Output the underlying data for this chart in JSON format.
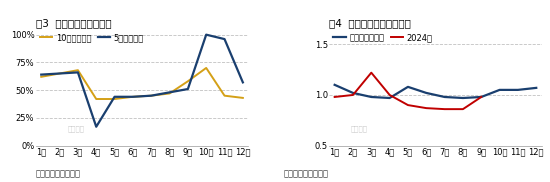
{
  "fig3_title": "图3  碳酸锂价格上涨概率",
  "fig4_title": "图4  碳酸锂价格季节性指数",
  "months": [
    "1月",
    "2月",
    "3月",
    "4月",
    "5月",
    "6月",
    "7月",
    "8月",
    "9月",
    "10月",
    "11月",
    "12月"
  ],
  "fig3_10yr": [
    0.62,
    0.65,
    0.68,
    0.42,
    0.42,
    0.44,
    0.45,
    0.47,
    0.58,
    0.7,
    0.45,
    0.43
  ],
  "fig3_5yr": [
    0.64,
    0.65,
    0.66,
    0.17,
    0.44,
    0.44,
    0.45,
    0.48,
    0.51,
    1.0,
    0.96,
    0.57
  ],
  "fig3_color_10yr": "#D4A017",
  "fig3_color_5yr": "#1A3F6F",
  "fig3_ylim": [
    0.0,
    1.05
  ],
  "fig3_yticks": [
    0.0,
    0.25,
    0.5,
    0.75,
    1.0
  ],
  "fig3_ytick_labels": [
    "0%",
    "25%",
    "50%",
    "75%",
    "100%"
  ],
  "fig3_legend_10yr": "10年上涨概率",
  "fig3_legend_5yr": "5年上涨概率",
  "fig4_hist": [
    1.1,
    1.02,
    0.98,
    0.97,
    1.08,
    1.02,
    0.98,
    0.97,
    0.98,
    1.05,
    1.05,
    1.07
  ],
  "fig4_2024": [
    0.98,
    1.0,
    1.22,
    1.0,
    0.9,
    0.87,
    0.86,
    0.86,
    0.98,
    null,
    null,
    null
  ],
  "fig4_color_hist": "#1A3F6F",
  "fig4_color_2024": "#C00000",
  "fig4_ylim": [
    0.5,
    1.65
  ],
  "fig4_yticks": [
    0.5,
    1.0,
    1.5
  ],
  "fig4_ytick_labels": [
    "0.5",
    "1.0",
    "1.5"
  ],
  "fig4_legend_hist": "历史季节性指数",
  "fig4_legend_2024": "2024年",
  "source_text": "数据来源：卓创资讯",
  "watermark": "卓创资讯",
  "bg_color": "#FFFFFF",
  "grid_color": "#BBBBBB",
  "title_fontsize": 7.5,
  "label_fontsize": 6,
  "legend_fontsize": 6,
  "source_fontsize": 6
}
